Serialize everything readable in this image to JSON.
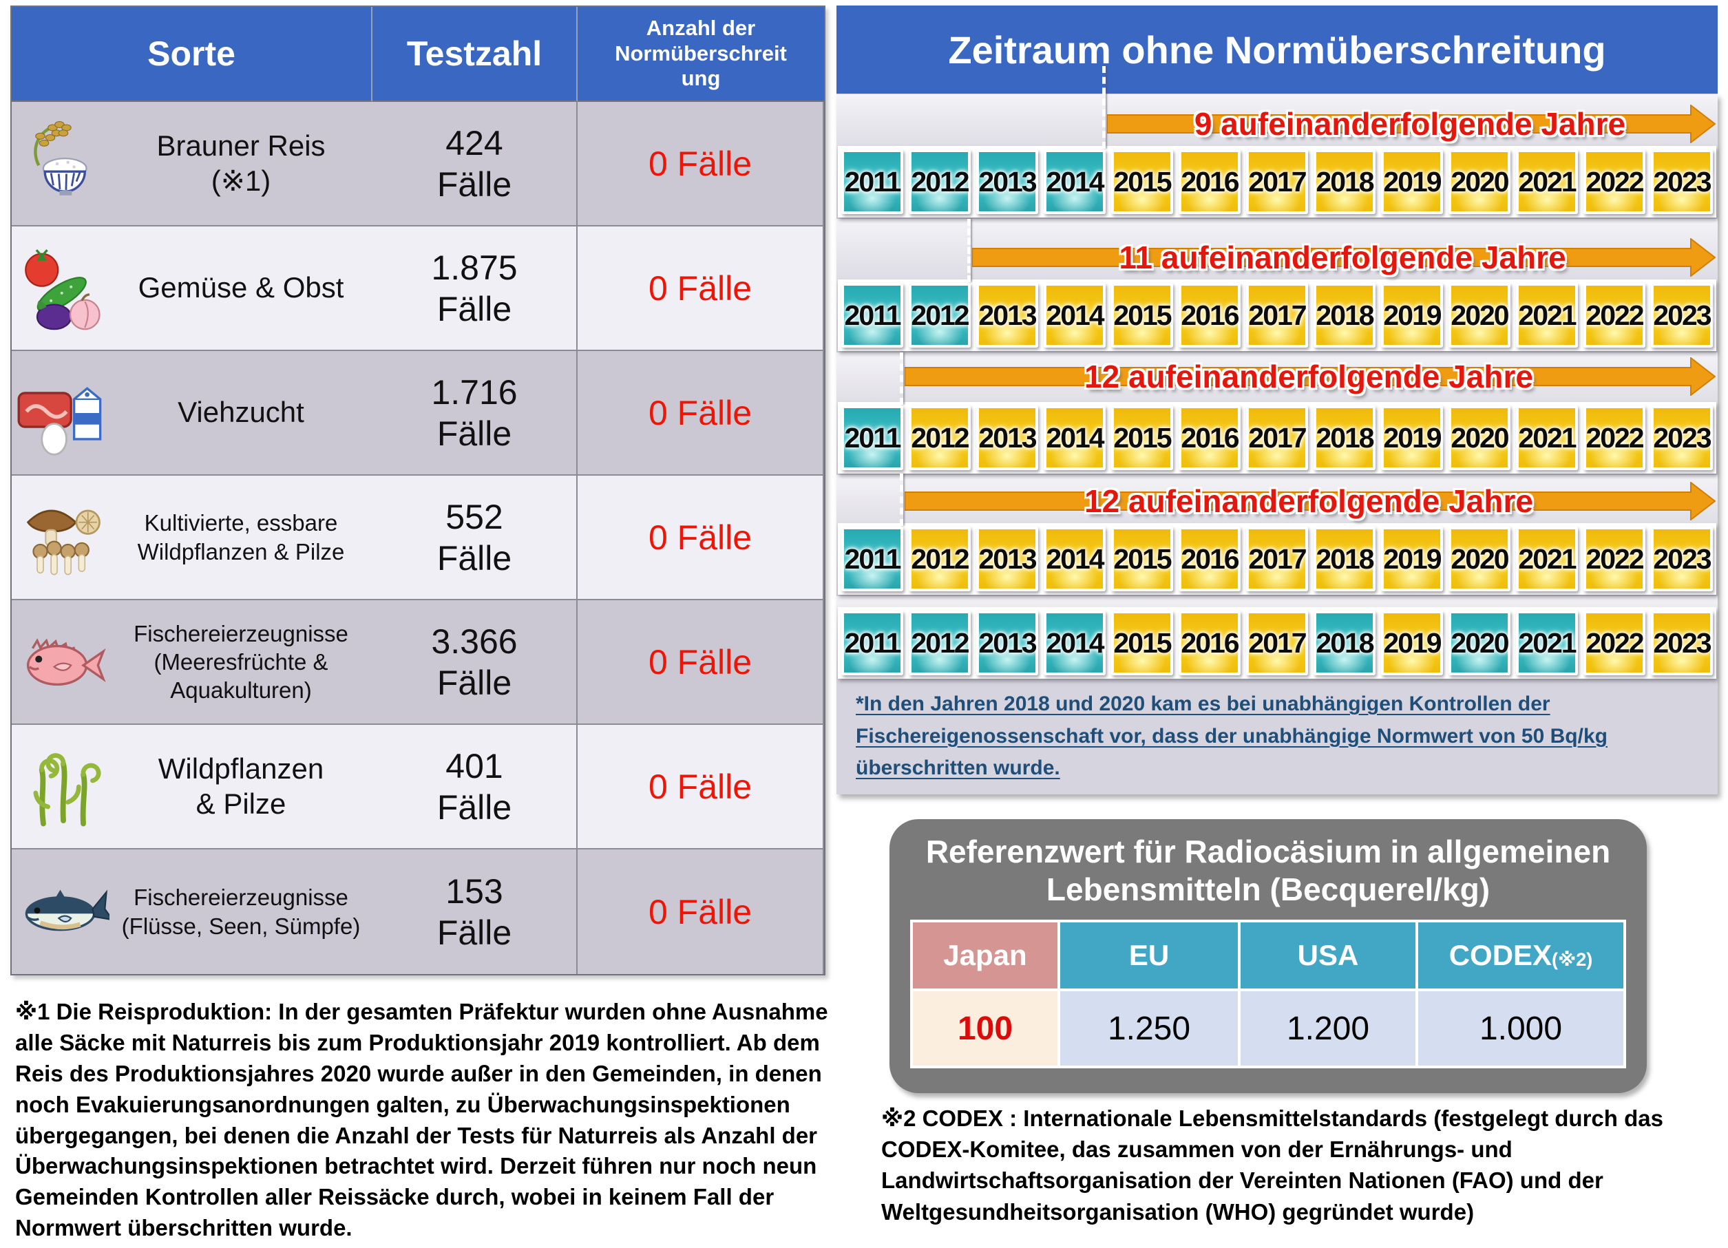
{
  "left_table": {
    "headers": [
      "Sorte",
      "Testzahl",
      "Anzahl der\nNormüberschreit\nung"
    ],
    "rows": [
      {
        "icon": "rice-bowl-icon",
        "label": "Brauner Reis\n(※1)",
        "tests": "424\nFälle",
        "exceed": "0 Fälle"
      },
      {
        "icon": "vegetables-fruit-icon",
        "label": "Gemüse & Obst",
        "tests": "1.875\nFälle",
        "exceed": "0 Fälle"
      },
      {
        "icon": "livestock-icon",
        "label": "Viehzucht",
        "tests": "1.716\nFälle",
        "exceed": "0 Fälle"
      },
      {
        "icon": "mushrooms-icon",
        "label": "Kultivierte, essbare\nWildpflanzen & Pilze",
        "tests": "552\nFälle",
        "exceed": "0 Fälle"
      },
      {
        "icon": "sea-fish-icon",
        "label": "Fischereierzeugnisse\n(Meeresfrüchte &\nAquakulturen)",
        "tests": "3.366\nFälle",
        "exceed": "0 Fälle"
      },
      {
        "icon": "wild-plants-icon",
        "label": "Wildpflanzen\n& Pilze",
        "tests": "401\nFälle",
        "exceed": "0 Fälle"
      },
      {
        "icon": "river-fish-icon",
        "label": "Fischereierzeugnisse\n(Flüsse, Seen, Sümpfe)",
        "tests": "153\nFälle",
        "exceed": "0 Fälle"
      }
    ]
  },
  "footnote1": "※1 Die Reisproduktion: In der gesamten Präfektur wurden ohne Ausnahme alle Säcke mit Naturreis bis zum Produktionsjahr 2019 kontrolliert. Ab dem Reis des Produktionsjahres 2020 wurde außer in den Gemeinden, in denen noch Evakuierungsanordnungen galten, zu Überwachungsinspektionen übergegangen, bei denen die Anzahl der Tests für Naturreis als Anzahl der Überwachungsinspektionen betrachtet wird. Derzeit führen nur noch neun Gemeinden Kontrollen aller Reissäcke durch, wobei in keinem Fall der Normwert überschritten wurde.",
  "timeline": {
    "title": "Zeitraum ohne Normüberschreitung",
    "years": [
      "2011",
      "2012",
      "2013",
      "2014",
      "2015",
      "2016",
      "2017",
      "2018",
      "2019",
      "2020",
      "2021",
      "2022",
      "2023"
    ],
    "rows": [
      {
        "caption": "9 aufeinanderfolgende Jahre",
        "arrow_start_year": "2015",
        "teal_years": [
          "2011",
          "2012",
          "2013",
          "2014"
        ]
      },
      {
        "caption": "11 aufeinanderfolgende Jahre",
        "arrow_start_year": "2013",
        "teal_years": [
          "2011",
          "2012"
        ]
      },
      {
        "caption": "12 aufeinanderfolgende Jahre",
        "arrow_start_year": "2012",
        "teal_years": [
          "2011"
        ]
      },
      {
        "caption": "12 aufeinanderfolgende Jahre",
        "arrow_start_year": "2012",
        "teal_years": [
          "2011"
        ]
      },
      {
        "caption": null,
        "arrow_start_year": null,
        "teal_years": [
          "2011",
          "2012",
          "2013",
          "2014",
          "2018",
          "2020",
          "2021"
        ]
      }
    ],
    "footnote": "*In den Jahren 2018 und 2020 kam es bei unabhängigen Kontrollen der Fischereigenossenschaft vor, dass der unabhängige Normwert von 50 Bq/kg überschritten wurde."
  },
  "reference": {
    "title": "Referenzwert für Radiocäsium in allgemeinen Lebensmitteln (Becquerel/kg)",
    "columns": [
      {
        "label": "Japan",
        "suffix": "",
        "value": "100",
        "highlight": true
      },
      {
        "label": "EU",
        "suffix": "",
        "value": "1.250",
        "highlight": false
      },
      {
        "label": "USA",
        "suffix": "",
        "value": "1.200",
        "highlight": false
      },
      {
        "label": "CODEX",
        "suffix": "(※2)",
        "value": "1.000",
        "highlight": false
      }
    ]
  },
  "footnote2": "※2 CODEX :  Internationale Lebensmittelstandards (festgelegt durch das CODEX-Komitee, das zusammen von der Ernährungs- und Landwirtschaftsorganisation der Vereinten Nationen (FAO) und der Weltgesundheitsorganisation (WHO) gegründet wurde)",
  "colors": {
    "header_blue": "#3a67c1",
    "panel_gray": "#d6d4de",
    "chip_teal": "#3cc3c9",
    "chip_yellow": "#f5c211",
    "arrow_orange": "#f09c12",
    "caption_red": "#e3170d",
    "exceed_red": "#ee1507",
    "timeline_footnote_blue": "#1f4e79",
    "reference_box_gray": "#7a7a7a",
    "japan_header_pink": "#d59693",
    "intl_header_teal": "#41a7c4",
    "japan_value_bg": "#fceedf",
    "intl_value_bg": "#d5def0",
    "japan_value_red": "#dd0a0a"
  }
}
